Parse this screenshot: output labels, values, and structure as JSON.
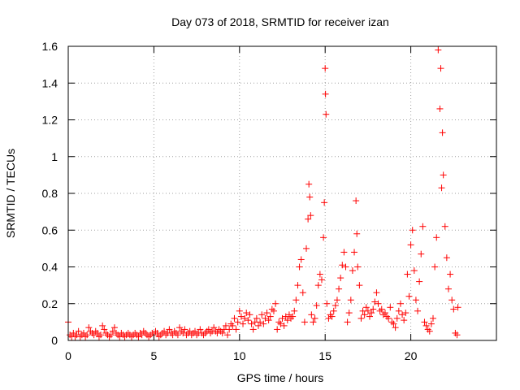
{
  "chart_data": {
    "type": "scatter",
    "title": "Day 073 of 2018, SRMTID for receiver izan",
    "xlabel": "GPS time / hours",
    "ylabel": "SRMTID / TECUs",
    "xlim": [
      0,
      25
    ],
    "ylim": [
      0,
      1.6
    ],
    "x_ticks": [
      0,
      5,
      10,
      15,
      20
    ],
    "x_tick_labels": [
      "0",
      "5",
      "10",
      "15",
      "20"
    ],
    "y_ticks": [
      0,
      0.2,
      0.4,
      0.6,
      0.8,
      1.0,
      1.2,
      1.4,
      1.6
    ],
    "y_tick_labels": [
      "0",
      "0.2",
      "0.4",
      "0.6",
      "0.8",
      "1",
      "1.2",
      "1.4",
      "1.6"
    ],
    "grid": true,
    "marker": "+",
    "color": "#ff0000",
    "series": [
      {
        "name": "SRMTID",
        "x": [
          0.0,
          0.1,
          0.2,
          0.3,
          0.4,
          0.5,
          0.6,
          0.7,
          0.8,
          0.9,
          1.0,
          1.1,
          1.2,
          1.3,
          1.4,
          1.5,
          1.6,
          1.7,
          1.8,
          1.9,
          2.0,
          2.1,
          2.2,
          2.3,
          2.4,
          2.5,
          2.6,
          2.7,
          2.8,
          2.9,
          3.0,
          3.1,
          3.2,
          3.3,
          3.4,
          3.5,
          3.6,
          3.7,
          3.8,
          3.9,
          4.0,
          4.1,
          4.2,
          4.3,
          4.4,
          4.5,
          4.6,
          4.7,
          4.8,
          4.9,
          5.0,
          5.1,
          5.2,
          5.3,
          5.4,
          5.5,
          5.6,
          5.7,
          5.8,
          5.9,
          6.0,
          6.1,
          6.2,
          6.3,
          6.4,
          6.5,
          6.6,
          6.7,
          6.8,
          6.9,
          7.0,
          7.1,
          7.2,
          7.3,
          7.4,
          7.5,
          7.6,
          7.7,
          7.8,
          7.9,
          8.0,
          8.1,
          8.2,
          8.3,
          8.4,
          8.5,
          8.6,
          8.7,
          8.8,
          8.9,
          9.0,
          9.1,
          9.2,
          9.3,
          9.4,
          9.5,
          9.6,
          9.7,
          9.8,
          9.9,
          10.0,
          10.1,
          10.2,
          10.3,
          10.4,
          10.5,
          10.6,
          10.7,
          10.8,
          10.9,
          11.0,
          11.1,
          11.2,
          11.3,
          11.4,
          11.5,
          11.6,
          11.7,
          11.8,
          11.9,
          12.0,
          12.1,
          12.2,
          12.3,
          12.4,
          12.5,
          12.6,
          12.7,
          12.8,
          12.9,
          13.0,
          13.1,
          13.2,
          13.3,
          13.4,
          13.5,
          13.6,
          13.7,
          13.8,
          13.9,
          14.0,
          14.05,
          14.1,
          14.15,
          14.2,
          14.3,
          14.4,
          14.5,
          14.6,
          14.7,
          14.8,
          14.9,
          14.95,
          15.0,
          15.02,
          15.05,
          15.1,
          15.2,
          15.3,
          15.4,
          15.5,
          15.6,
          15.7,
          15.8,
          15.9,
          16.0,
          16.1,
          16.2,
          16.3,
          16.4,
          16.5,
          16.6,
          16.7,
          16.8,
          16.85,
          16.9,
          17.0,
          17.1,
          17.2,
          17.3,
          17.4,
          17.5,
          17.6,
          17.7,
          17.8,
          17.9,
          18.0,
          18.1,
          18.2,
          18.3,
          18.4,
          18.5,
          18.6,
          18.7,
          18.8,
          18.9,
          19.0,
          19.1,
          19.2,
          19.3,
          19.4,
          19.5,
          19.6,
          19.7,
          19.8,
          19.9,
          20.0,
          20.1,
          20.2,
          20.3,
          20.4,
          20.5,
          20.6,
          20.7,
          20.8,
          20.9,
          21.0,
          21.1,
          21.2,
          21.3,
          21.4,
          21.5,
          21.6,
          21.7,
          21.75,
          21.8,
          21.85,
          21.9,
          22.0,
          22.1,
          22.2,
          22.3,
          22.4,
          22.5,
          22.6,
          22.7,
          22.75
        ],
        "y": [
          0.1,
          0.03,
          0.02,
          0.04,
          0.02,
          0.03,
          0.05,
          0.02,
          0.03,
          0.04,
          0.02,
          0.03,
          0.07,
          0.05,
          0.04,
          0.03,
          0.05,
          0.04,
          0.02,
          0.03,
          0.08,
          0.06,
          0.04,
          0.03,
          0.02,
          0.03,
          0.05,
          0.07,
          0.04,
          0.03,
          0.02,
          0.04,
          0.03,
          0.02,
          0.03,
          0.04,
          0.03,
          0.02,
          0.03,
          0.04,
          0.03,
          0.02,
          0.04,
          0.03,
          0.05,
          0.04,
          0.03,
          0.02,
          0.03,
          0.04,
          0.03,
          0.05,
          0.04,
          0.02,
          0.03,
          0.04,
          0.05,
          0.03,
          0.04,
          0.06,
          0.04,
          0.03,
          0.05,
          0.04,
          0.03,
          0.07,
          0.05,
          0.04,
          0.06,
          0.03,
          0.04,
          0.05,
          0.03,
          0.04,
          0.05,
          0.03,
          0.04,
          0.06,
          0.04,
          0.03,
          0.04,
          0.05,
          0.06,
          0.04,
          0.05,
          0.07,
          0.05,
          0.04,
          0.06,
          0.05,
          0.04,
          0.06,
          0.08,
          0.03,
          0.06,
          0.09,
          0.08,
          0.12,
          0.06,
          0.1,
          0.16,
          0.13,
          0.09,
          0.12,
          0.15,
          0.11,
          0.14,
          0.09,
          0.06,
          0.1,
          0.12,
          0.08,
          0.1,
          0.14,
          0.09,
          0.12,
          0.15,
          0.11,
          0.13,
          0.17,
          0.16,
          0.2,
          0.06,
          0.1,
          0.09,
          0.12,
          0.08,
          0.13,
          0.11,
          0.14,
          0.12,
          0.13,
          0.16,
          0.22,
          0.3,
          0.4,
          0.44,
          0.26,
          0.1,
          0.5,
          0.66,
          0.85,
          0.78,
          0.68,
          0.14,
          0.1,
          0.12,
          0.19,
          0.3,
          0.36,
          0.33,
          0.56,
          0.75,
          1.48,
          1.34,
          1.23,
          0.2,
          0.12,
          0.14,
          0.13,
          0.16,
          0.19,
          0.22,
          0.28,
          0.34,
          0.41,
          0.48,
          0.4,
          0.1,
          0.15,
          0.22,
          0.38,
          0.48,
          0.76,
          0.58,
          0.4,
          0.3,
          0.12,
          0.16,
          0.14,
          0.18,
          0.16,
          0.13,
          0.15,
          0.17,
          0.21,
          0.26,
          0.2,
          0.16,
          0.17,
          0.14,
          0.15,
          0.13,
          0.12,
          0.18,
          0.1,
          0.09,
          0.07,
          0.12,
          0.16,
          0.2,
          0.14,
          0.11,
          0.15,
          0.36,
          0.24,
          0.52,
          0.6,
          0.38,
          0.22,
          0.16,
          0.32,
          0.47,
          0.62,
          0.1,
          0.08,
          0.06,
          0.05,
          0.09,
          0.12,
          0.4,
          0.56,
          1.58,
          1.26,
          1.48,
          0.83,
          1.13,
          0.9,
          0.62,
          0.45,
          0.28,
          0.36,
          0.22,
          0.17,
          0.04,
          0.03,
          0.18
        ]
      }
    ]
  }
}
